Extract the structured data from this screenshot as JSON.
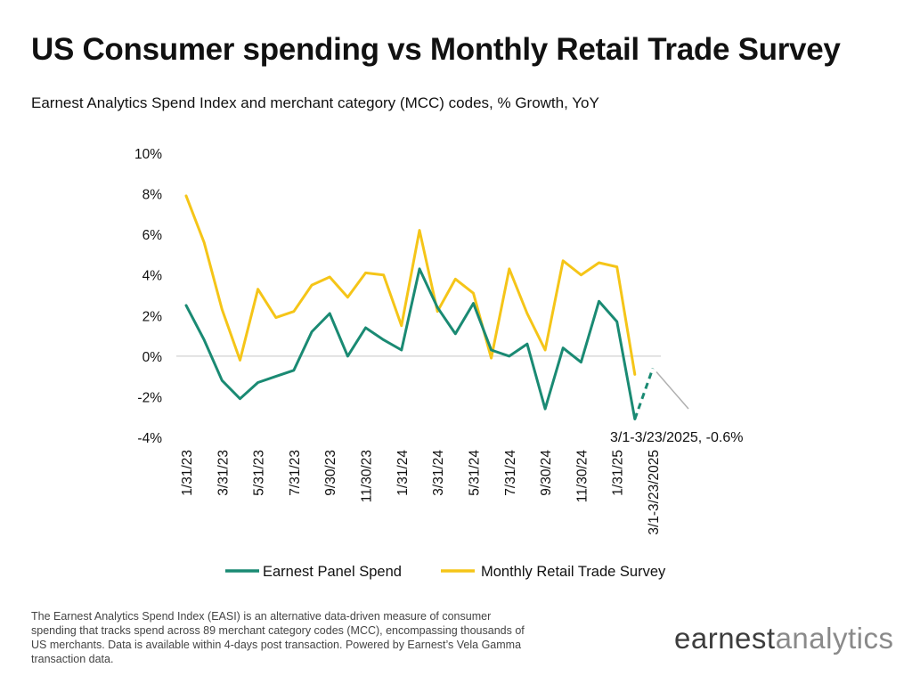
{
  "header": {
    "title": "US Consumer spending vs Monthly Retail Trade Survey",
    "subtitle": "Earnest Analytics Spend Index and merchant category (MCC) codes, % Growth, YoY"
  },
  "footnote": "The Earnest Analytics Spend Index (EASI) is an alternative data-driven measure of consumer spending that tracks spend across 89 merchant category codes (MCC), encompassing thousands of US merchants. Data is available within 4-days post transaction. Powered by Earnest’s Vela Gamma transaction data.",
  "logo": {
    "part1": "earnest",
    "part2": "analytics"
  },
  "colors": {
    "earnest": "#1a8a73",
    "mrts": "#f5c518",
    "grid": "#d9d9d9",
    "callout_line": "#b0b0b0"
  },
  "chart_data": {
    "type": "line",
    "title": "US Consumer spending vs Monthly Retail Trade Survey",
    "subtitle": "Earnest Analytics Spend Index and merchant category (MCC) codes, % Growth, YoY",
    "x": [
      "1/31/23",
      "2/28/23",
      "3/31/23",
      "4/30/23",
      "5/31/23",
      "6/30/23",
      "7/31/23",
      "8/31/23",
      "9/30/23",
      "10/31/23",
      "11/30/23",
      "12/31/23",
      "1/31/24",
      "2/29/24",
      "3/31/24",
      "4/30/24",
      "5/31/24",
      "6/30/24",
      "7/31/24",
      "8/31/24",
      "9/30/24",
      "10/31/24",
      "11/30/24",
      "12/31/24",
      "1/31/25",
      "2/28/25",
      "3/1-3/23/2025"
    ],
    "x_tick_labels": [
      "1/31/23",
      "3/31/23",
      "5/31/23",
      "7/31/23",
      "9/30/23",
      "11/30/23",
      "1/31/24",
      "3/31/24",
      "5/31/24",
      "7/31/24",
      "9/30/24",
      "11/30/24",
      "1/31/25",
      "3/1-3/23/2025"
    ],
    "y_tick_labels": [
      "10%",
      "8%",
      "6%",
      "4%",
      "2%",
      "0%",
      "-2%",
      "-4%"
    ],
    "ylim": [
      -4,
      10
    ],
    "y_unit": "%",
    "series": [
      {
        "name": "Earnest Panel Spend",
        "values": [
          2.5,
          0.8,
          -1.2,
          -2.1,
          -1.3,
          -1.0,
          -0.7,
          1.2,
          2.1,
          0.0,
          1.4,
          0.8,
          0.3,
          4.3,
          2.4,
          1.1,
          2.6,
          0.3,
          0.0,
          0.6,
          -2.6,
          0.4,
          -0.3,
          2.7,
          1.7,
          -3.1,
          -0.6
        ],
        "dashed_last_segment": true
      },
      {
        "name": "Monthly Retail Trade Survey",
        "values": [
          7.9,
          5.6,
          2.3,
          -0.2,
          3.3,
          1.9,
          2.2,
          3.5,
          3.9,
          2.9,
          4.1,
          4.0,
          1.5,
          6.2,
          2.2,
          3.8,
          3.1,
          -0.1,
          4.3,
          2.1,
          0.3,
          4.7,
          4.0,
          4.6,
          4.4,
          -0.9,
          null
        ]
      }
    ],
    "annotation": "3/1-3/23/2025, -0.6%",
    "grid": false,
    "legend_position": "bottom"
  }
}
